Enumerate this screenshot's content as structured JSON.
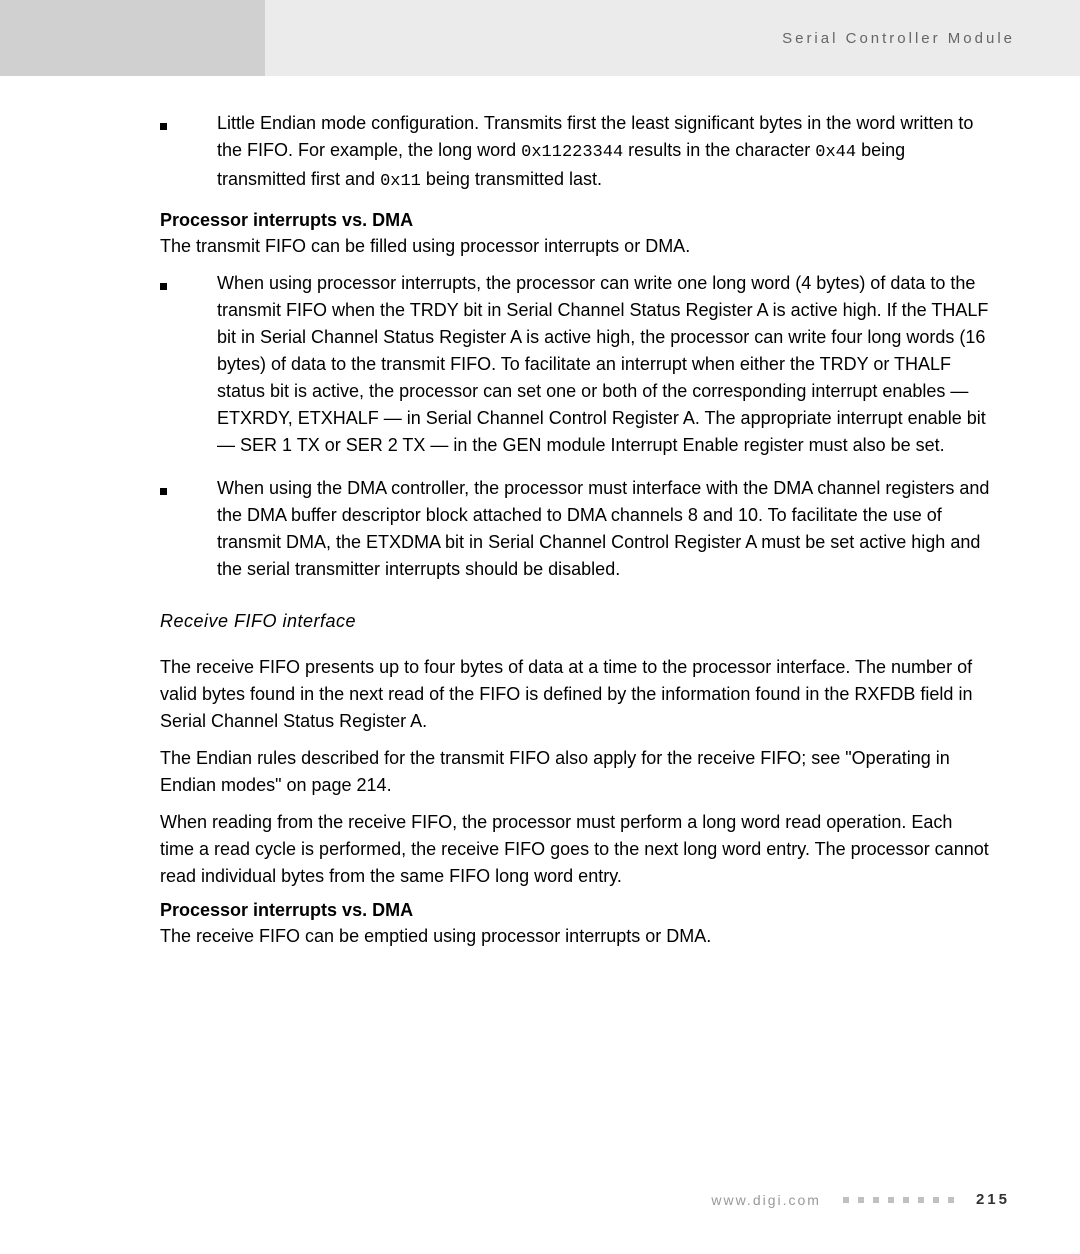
{
  "header": {
    "title": "Serial Controller Module"
  },
  "bullet1": {
    "prefix": "Little Endian mode configuration. Transmits first the least significant bytes in the word written to the FIFO. For example, the long word ",
    "code1": "0x11223344",
    "mid1": " results in the character ",
    "code2": "0x44",
    "mid2": " being transmitted first and ",
    "code3": "0x11",
    "suffix": " being transmitted last."
  },
  "heading1": "Processor interrupts vs. DMA",
  "para1": "The transmit FIFO can be filled using processor interrupts or DMA.",
  "bullet2": "When using processor interrupts, the processor can write one long word (4 bytes) of data to the transmit FIFO when the TRDY bit in Serial Channel Status Register A is active high. If the THALF bit in Serial Channel Status Register A is active high, the processor can write four long words (16 bytes) of data to the transmit FIFO. To facilitate an interrupt when either the TRDY or THALF status bit is active, the processor can set one or both of the corresponding interrupt enables — ETXRDY, ETXHALF — in Serial Channel Control Register A. The appropriate interrupt enable bit — SER 1 TX or SER 2 TX — in the GEN module Interrupt Enable register must also be set.",
  "bullet3": "When using the DMA controller, the processor must interface with the DMA channel registers and the DMA buffer descriptor block attached to DMA channels 8 and 10. To facilitate the use of transmit DMA, the ETXDMA bit in Serial Channel Control Register A must be set active high and the serial transmitter interrupts should be disabled.",
  "heading2": "Receive FIFO interface",
  "para2": "The receive FIFO presents up to four bytes of data at a time to the processor interface. The number of valid bytes found in the next read of the FIFO is defined by the information found in the RXFDB field in Serial Channel Status Register A.",
  "para3": "The Endian rules described for the transmit FIFO also apply for the receive FIFO; see \"Operating in Endian modes\" on page 214.",
  "para4": "When reading from the receive FIFO, the processor must perform a long word read operation. Each time a read cycle is performed, the receive FIFO goes to the next long word entry. The processor cannot read individual bytes from the same FIFO long word entry.",
  "heading3": "Processor interrupts vs. DMA",
  "para5": "The receive FIFO can be emptied using processor interrupts or DMA.",
  "footer": {
    "url": "www.digi.com",
    "page": "215"
  }
}
